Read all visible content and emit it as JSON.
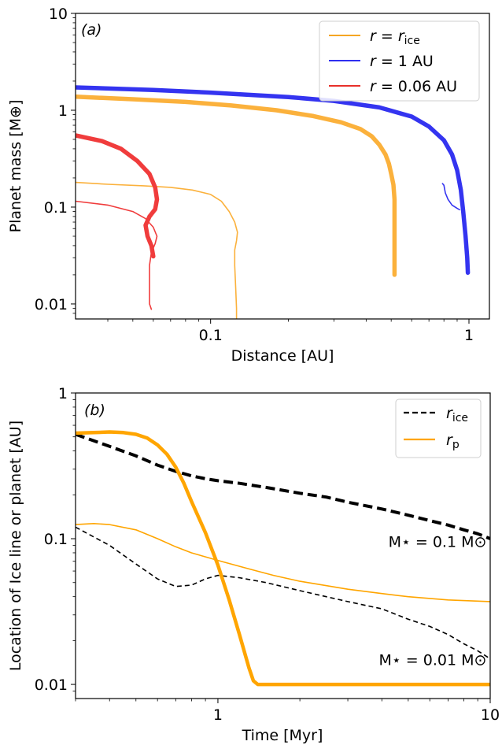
{
  "chart_data": [
    {
      "id": "a",
      "type": "line",
      "panel_label": "(a)",
      "xlabel": "Distance [AU]",
      "ylabel": "Planet mass [M⊕]",
      "xscale": "log",
      "yscale": "log",
      "xlim": [
        0.03,
        1.2
      ],
      "ylim": [
        0.007,
        10
      ],
      "xticks": [
        {
          "v": 0.1,
          "label": "0.1"
        },
        {
          "v": 1,
          "label": "1"
        }
      ],
      "yticks": [
        {
          "v": 0.01,
          "label": "0.01"
        },
        {
          "v": 0.1,
          "label": "0.1"
        },
        {
          "v": 1,
          "label": "1"
        },
        {
          "v": 10,
          "label": "10"
        }
      ],
      "legend": {
        "placement": "top-right",
        "entries": [
          {
            "label": "r = r_ice",
            "color": "#f5a623"
          },
          {
            "label": "r = 1 AU",
            "color": "#2f2ff0"
          },
          {
            "label": "r = 0.06 AU",
            "color": "#e8302a"
          }
        ]
      },
      "series": [
        {
          "legend": 0,
          "color": "#fbb13c",
          "width": 5.5,
          "points": [
            [
              0.03,
              1.38
            ],
            [
              0.05,
              1.3
            ],
            [
              0.08,
              1.22
            ],
            [
              0.12,
              1.12
            ],
            [
              0.18,
              1.0
            ],
            [
              0.25,
              0.87
            ],
            [
              0.32,
              0.75
            ],
            [
              0.38,
              0.64
            ],
            [
              0.42,
              0.54
            ],
            [
              0.45,
              0.44
            ],
            [
              0.475,
              0.35
            ],
            [
              0.49,
              0.28
            ],
            [
              0.5,
              0.22
            ],
            [
              0.51,
              0.17
            ],
            [
              0.515,
              0.12
            ],
            [
              0.515,
              0.08
            ],
            [
              0.515,
              0.05
            ],
            [
              0.515,
              0.03
            ],
            [
              0.515,
              0.02
            ]
          ]
        },
        {
          "legend": 0,
          "color": "#fbb13c",
          "width": 1.6,
          "points": [
            [
              0.03,
              0.18
            ],
            [
              0.04,
              0.172
            ],
            [
              0.055,
              0.166
            ],
            [
              0.07,
              0.16
            ],
            [
              0.085,
              0.15
            ],
            [
              0.1,
              0.135
            ],
            [
              0.11,
              0.115
            ],
            [
              0.118,
              0.09
            ],
            [
              0.124,
              0.07
            ],
            [
              0.127,
              0.055
            ],
            [
              0.126,
              0.045
            ],
            [
              0.124,
              0.036
            ],
            [
              0.124,
              0.025
            ],
            [
              0.125,
              0.015
            ],
            [
              0.126,
              0.009
            ],
            [
              0.126,
              0.007
            ]
          ]
        },
        {
          "legend": 1,
          "color": "#3434f0",
          "width": 5.5,
          "points": [
            [
              0.03,
              1.72
            ],
            [
              0.06,
              1.62
            ],
            [
              0.1,
              1.52
            ],
            [
              0.2,
              1.37
            ],
            [
              0.3,
              1.25
            ],
            [
              0.45,
              1.07
            ],
            [
              0.6,
              0.86
            ],
            [
              0.7,
              0.68
            ],
            [
              0.8,
              0.49
            ],
            [
              0.86,
              0.35
            ],
            [
              0.9,
              0.24
            ],
            [
              0.93,
              0.15
            ],
            [
              0.95,
              0.09
            ],
            [
              0.97,
              0.05
            ],
            [
              0.985,
              0.03
            ],
            [
              0.99,
              0.021
            ]
          ]
        },
        {
          "legend": 1,
          "color": "#3434f0",
          "width": 1.6,
          "points": [
            [
              0.79,
              0.175
            ],
            [
              0.8,
              0.168
            ],
            [
              0.81,
              0.14
            ],
            [
              0.83,
              0.12
            ],
            [
              0.86,
              0.105
            ],
            [
              0.9,
              0.097
            ],
            [
              0.92,
              0.094
            ]
          ]
        },
        {
          "legend": 2,
          "color": "#f03c3c",
          "width": 5.5,
          "points": [
            [
              0.03,
              0.55
            ],
            [
              0.038,
              0.48
            ],
            [
              0.045,
              0.4
            ],
            [
              0.052,
              0.3
            ],
            [
              0.058,
              0.22
            ],
            [
              0.061,
              0.16
            ],
            [
              0.062,
              0.12
            ],
            [
              0.061,
              0.095
            ],
            [
              0.058,
              0.08
            ],
            [
              0.056,
              0.065
            ],
            [
              0.057,
              0.05
            ],
            [
              0.059,
              0.04
            ],
            [
              0.06,
              0.031
            ]
          ]
        },
        {
          "legend": 2,
          "color": "#f03c3c",
          "width": 1.6,
          "points": [
            [
              0.03,
              0.115
            ],
            [
              0.04,
              0.105
            ],
            [
              0.05,
              0.09
            ],
            [
              0.056,
              0.076
            ],
            [
              0.06,
              0.062
            ],
            [
              0.062,
              0.05
            ],
            [
              0.061,
              0.042
            ],
            [
              0.059,
              0.034
            ],
            [
              0.058,
              0.025
            ],
            [
              0.058,
              0.015
            ],
            [
              0.058,
              0.01
            ],
            [
              0.059,
              0.0088
            ]
          ]
        }
      ]
    },
    {
      "id": "b",
      "type": "line",
      "panel_label": "(b)",
      "xlabel": "Time [Myr]",
      "ylabel": "Location of Ice line or planet [AU]",
      "xscale": "log",
      "yscale": "log",
      "xlim": [
        0.3,
        10
      ],
      "ylim": [
        0.008,
        1
      ],
      "xticks": [
        {
          "v": 1,
          "label": "1"
        },
        {
          "v": 10,
          "label": "10"
        }
      ],
      "yticks": [
        {
          "v": 0.01,
          "label": "0.01"
        },
        {
          "v": 0.1,
          "label": "0.1"
        },
        {
          "v": 1,
          "label": "1"
        }
      ],
      "legend": {
        "placement": "top-right",
        "entries": [
          {
            "label": "r_ice",
            "color": "#000000",
            "dash": true
          },
          {
            "label": "r_p",
            "color": "#ffa500",
            "dash": false
          }
        ]
      },
      "annotations": [
        {
          "text": "M⋆ = 0.1 M⊙",
          "x": 9.7,
          "y": 0.088
        },
        {
          "text": "M⋆ = 0.01 M⊙",
          "x": 9.7,
          "y": 0.0136
        }
      ],
      "series": [
        {
          "name": "r_ice",
          "color": "#000000",
          "width": 4,
          "dash": true,
          "points": [
            [
              0.3,
              0.52
            ],
            [
              0.4,
              0.43
            ],
            [
              0.5,
              0.37
            ],
            [
              0.6,
              0.32
            ],
            [
              0.7,
              0.29
            ],
            [
              0.8,
              0.27
            ],
            [
              0.9,
              0.258
            ],
            [
              1.0,
              0.25
            ],
            [
              1.2,
              0.24
            ],
            [
              1.5,
              0.225
            ],
            [
              2.0,
              0.205
            ],
            [
              2.5,
              0.193
            ],
            [
              3.0,
              0.178
            ],
            [
              4.0,
              0.16
            ],
            [
              5.0,
              0.145
            ],
            [
              6.0,
              0.133
            ],
            [
              7.0,
              0.124
            ],
            [
              8.0,
              0.115
            ],
            [
              9.0,
              0.108
            ],
            [
              10.0,
              0.1
            ]
          ]
        },
        {
          "name": "r_ice",
          "color": "#000000",
          "width": 1.6,
          "dash": true,
          "points": [
            [
              0.3,
              0.12
            ],
            [
              0.4,
              0.09
            ],
            [
              0.5,
              0.067
            ],
            [
              0.6,
              0.053
            ],
            [
              0.7,
              0.047
            ],
            [
              0.8,
              0.048
            ],
            [
              0.9,
              0.053
            ],
            [
              1.0,
              0.056
            ],
            [
              1.2,
              0.054
            ],
            [
              1.5,
              0.05
            ],
            [
              2.0,
              0.044
            ],
            [
              2.5,
              0.04
            ],
            [
              3.0,
              0.037
            ],
            [
              4.0,
              0.033
            ],
            [
              5.0,
              0.028
            ],
            [
              6.0,
              0.025
            ],
            [
              7.0,
              0.022
            ],
            [
              8.0,
              0.019
            ],
            [
              9.0,
              0.017
            ],
            [
              10.0,
              0.015
            ]
          ]
        },
        {
          "name": "r_p",
          "color": "#ffa500",
          "width": 4.5,
          "dash": false,
          "points": [
            [
              0.3,
              0.53
            ],
            [
              0.35,
              0.535
            ],
            [
              0.4,
              0.54
            ],
            [
              0.45,
              0.535
            ],
            [
              0.5,
              0.52
            ],
            [
              0.55,
              0.49
            ],
            [
              0.6,
              0.44
            ],
            [
              0.65,
              0.38
            ],
            [
              0.7,
              0.31
            ],
            [
              0.75,
              0.24
            ],
            [
              0.8,
              0.18
            ],
            [
              0.9,
              0.11
            ],
            [
              1.0,
              0.066
            ],
            [
              1.1,
              0.038
            ],
            [
              1.2,
              0.022
            ],
            [
              1.3,
              0.013
            ],
            [
              1.35,
              0.0106
            ],
            [
              1.4,
              0.01
            ],
            [
              2.0,
              0.01
            ],
            [
              5.0,
              0.01
            ],
            [
              10.0,
              0.01
            ]
          ]
        },
        {
          "name": "r_p",
          "color": "#ffa500",
          "width": 1.6,
          "dash": false,
          "points": [
            [
              0.3,
              0.125
            ],
            [
              0.35,
              0.127
            ],
            [
              0.4,
              0.125
            ],
            [
              0.5,
              0.115
            ],
            [
              0.6,
              0.1
            ],
            [
              0.7,
              0.088
            ],
            [
              0.8,
              0.08
            ],
            [
              1.0,
              0.071
            ],
            [
              1.3,
              0.062
            ],
            [
              1.6,
              0.056
            ],
            [
              2.0,
              0.051
            ],
            [
              3.0,
              0.045
            ],
            [
              4.0,
              0.042
            ],
            [
              5.0,
              0.04
            ],
            [
              7.0,
              0.038
            ],
            [
              10.0,
              0.037
            ]
          ]
        }
      ]
    }
  ]
}
